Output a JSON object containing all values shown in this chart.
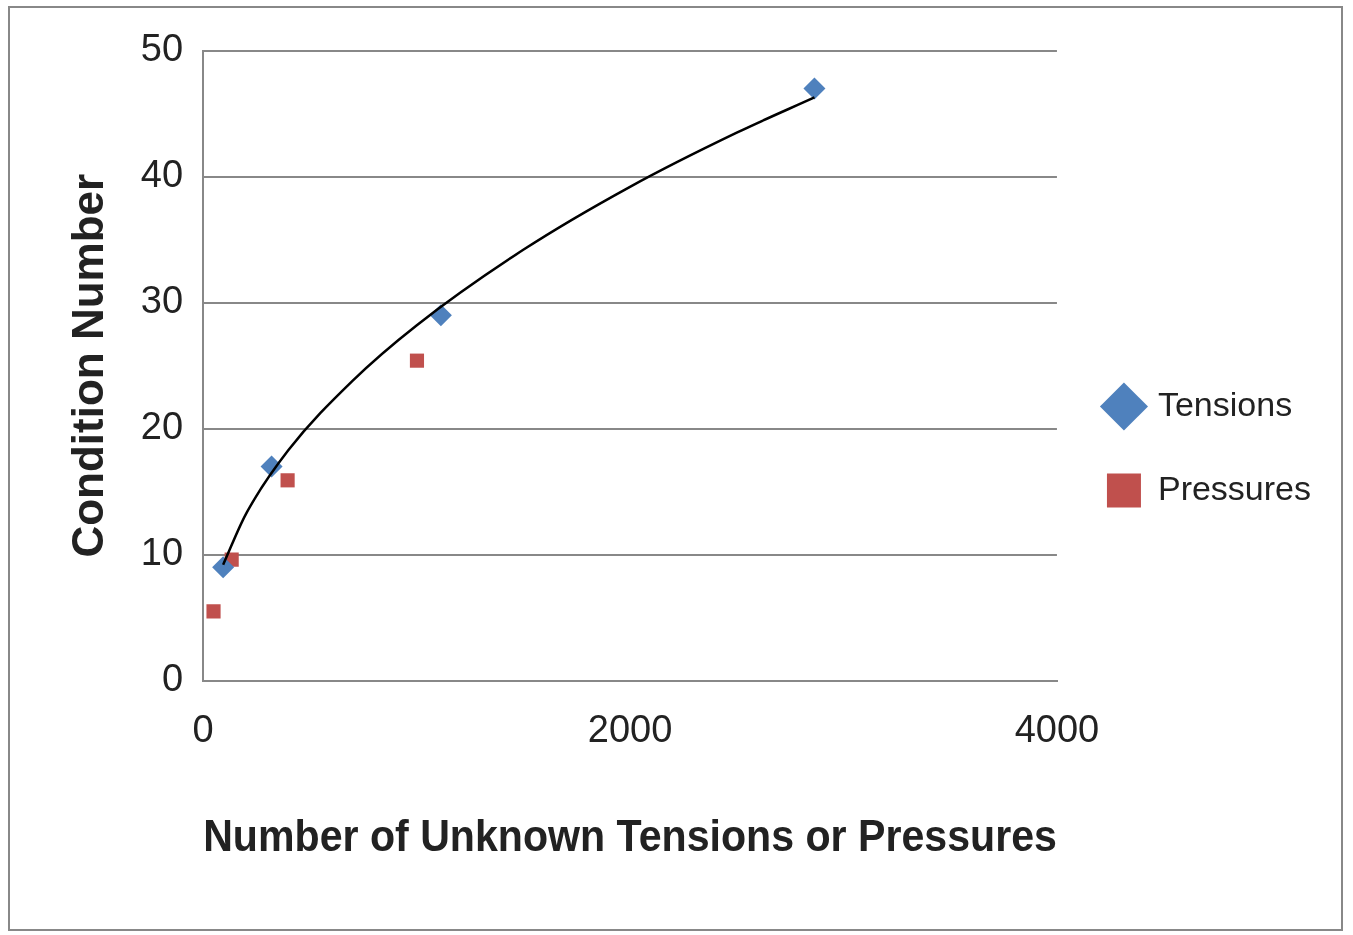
{
  "chart_data": {
    "type": "scatter",
    "xlabel": "Number of Unknown Tensions or Pressures",
    "ylabel": "Condition Number",
    "xlim": [
      0,
      4000
    ],
    "xticks": [
      0,
      2000,
      4000
    ],
    "ylim": [
      0,
      50
    ],
    "yticks": [
      0,
      10,
      20,
      30,
      40,
      50
    ],
    "grid": "y",
    "legend": "right",
    "series": [
      {
        "name": "Tensions",
        "color": "#4f81bd",
        "marker": "diamond",
        "x": [
          94,
          321,
          1114,
          2864
        ],
        "values": [
          9,
          17,
          29,
          47
        ]
      },
      {
        "name": "Pressures",
        "color": "#c0504d",
        "marker": "square",
        "x": [
          49,
          134,
          396,
          1002
        ],
        "values": [
          5.5,
          9.6,
          15.9,
          25.4
        ]
      },
      {
        "type": "line",
        "color": "#000000",
        "marker": "none",
        "x": [
          94,
          200,
          400,
          700,
          1000,
          1500,
          2000,
          2500,
          2864
        ],
        "values": [
          9.2,
          13.2,
          18.3,
          23.8,
          28.2,
          34.2,
          39.2,
          43.5,
          46.3
        ]
      }
    ]
  }
}
